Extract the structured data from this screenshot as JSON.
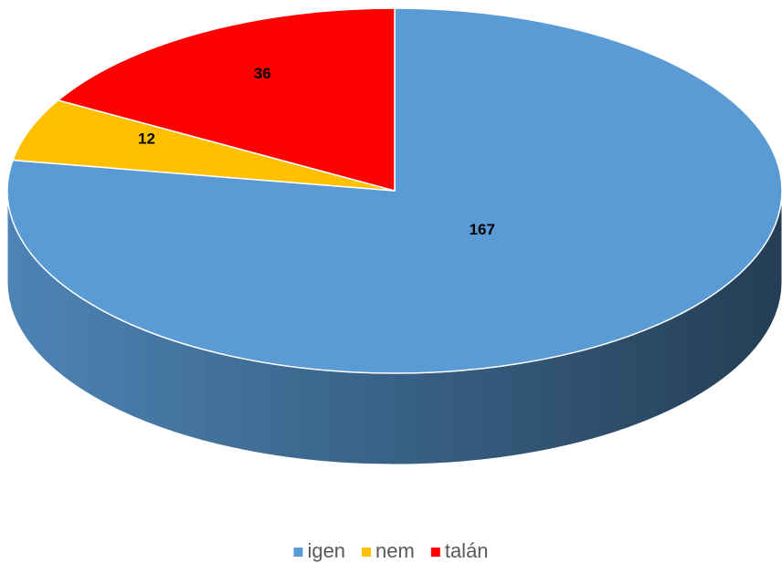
{
  "chart_data": {
    "type": "pie",
    "three_d": true,
    "categories": [
      "igen",
      "nem",
      "talán"
    ],
    "values": [
      167,
      12,
      36
    ],
    "colors": [
      "#5b9bd5",
      "#ffc000",
      "#ff0000"
    ],
    "legend": "bottom"
  }
}
